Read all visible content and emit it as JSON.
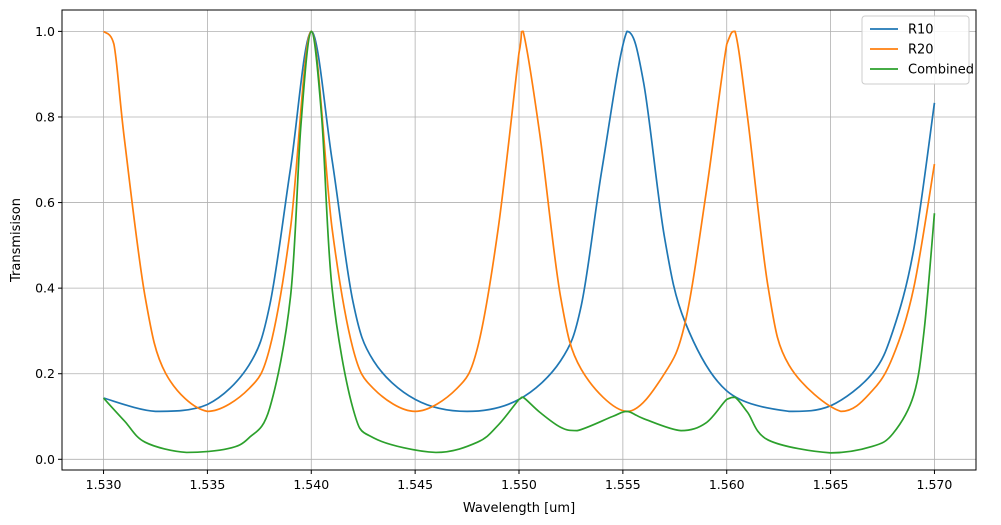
{
  "chart_data": {
    "type": "line",
    "title": "",
    "xlabel": "Wavelength [um]",
    "ylabel": "Transmisison",
    "xlim": [
      1.528,
      1.572
    ],
    "ylim": [
      -0.025,
      1.05
    ],
    "grid": true,
    "legend_position": "top-right",
    "x_ticks": [
      "1.530",
      "1.535",
      "1.540",
      "1.545",
      "1.550",
      "1.555",
      "1.560",
      "1.565",
      "1.570"
    ],
    "y_ticks": [
      "0.0",
      "0.2",
      "0.4",
      "0.6",
      "0.8",
      "1.0"
    ],
    "series": [
      {
        "name": "R10",
        "color": "#1f77b4",
        "x": [
          1.53,
          1.5325,
          1.535,
          1.537,
          1.538,
          1.539,
          1.54,
          1.541,
          1.542,
          1.543,
          1.545,
          1.5475,
          1.55,
          1.552,
          1.553,
          1.554,
          1.5552,
          1.556,
          1.557,
          1.558,
          1.56,
          1.563,
          1.565,
          1.567,
          1.568,
          1.569,
          1.57
        ],
        "y": [
          0.143,
          0.112,
          0.128,
          0.22,
          0.36,
          0.68,
          1.0,
          0.7,
          0.37,
          0.23,
          0.14,
          0.112,
          0.14,
          0.23,
          0.36,
          0.68,
          1.0,
          0.88,
          0.52,
          0.32,
          0.16,
          0.112,
          0.125,
          0.2,
          0.3,
          0.49,
          0.833
        ]
      },
      {
        "name": "R20",
        "color": "#ff7f0e",
        "x": [
          1.53,
          1.5305,
          1.531,
          1.532,
          1.533,
          1.535,
          1.537,
          1.538,
          1.539,
          1.54,
          1.541,
          1.542,
          1.543,
          1.545,
          1.547,
          1.548,
          1.549,
          1.55,
          1.5502,
          1.551,
          1.552,
          1.553,
          1.5552,
          1.557,
          1.558,
          1.559,
          1.56,
          1.5604,
          1.561,
          1.562,
          1.563,
          1.5655,
          1.567,
          1.568,
          1.569,
          1.57
        ],
        "y": [
          1.0,
          0.97,
          0.75,
          0.38,
          0.2,
          0.112,
          0.165,
          0.26,
          0.54,
          1.0,
          0.54,
          0.26,
          0.165,
          0.112,
          0.165,
          0.26,
          0.54,
          0.95,
          1.0,
          0.76,
          0.38,
          0.21,
          0.112,
          0.2,
          0.32,
          0.62,
          0.97,
          1.0,
          0.8,
          0.4,
          0.22,
          0.112,
          0.16,
          0.24,
          0.4,
          0.69
        ]
      },
      {
        "name": "Combined",
        "color": "#2ca02c",
        "x": [
          1.53,
          1.531,
          1.532,
          1.534,
          1.536,
          1.537,
          1.538,
          1.539,
          1.5395,
          1.54,
          1.5405,
          1.541,
          1.542,
          1.543,
          1.546,
          1.548,
          1.549,
          1.55,
          1.5502,
          1.551,
          1.552,
          1.5528,
          1.5545,
          1.5552,
          1.556,
          1.5578,
          1.559,
          1.56,
          1.5604,
          1.561,
          1.562,
          1.565,
          1.567,
          1.568,
          1.569,
          1.5695,
          1.57
        ],
        "y": [
          0.143,
          0.09,
          0.04,
          0.016,
          0.025,
          0.05,
          0.12,
          0.38,
          0.78,
          1.0,
          0.8,
          0.4,
          0.12,
          0.05,
          0.016,
          0.04,
          0.08,
          0.14,
          0.145,
          0.11,
          0.075,
          0.067,
          0.1,
          0.112,
          0.095,
          0.067,
          0.085,
          0.14,
          0.145,
          0.11,
          0.045,
          0.015,
          0.03,
          0.06,
          0.15,
          0.3,
          0.575
        ]
      }
    ]
  }
}
